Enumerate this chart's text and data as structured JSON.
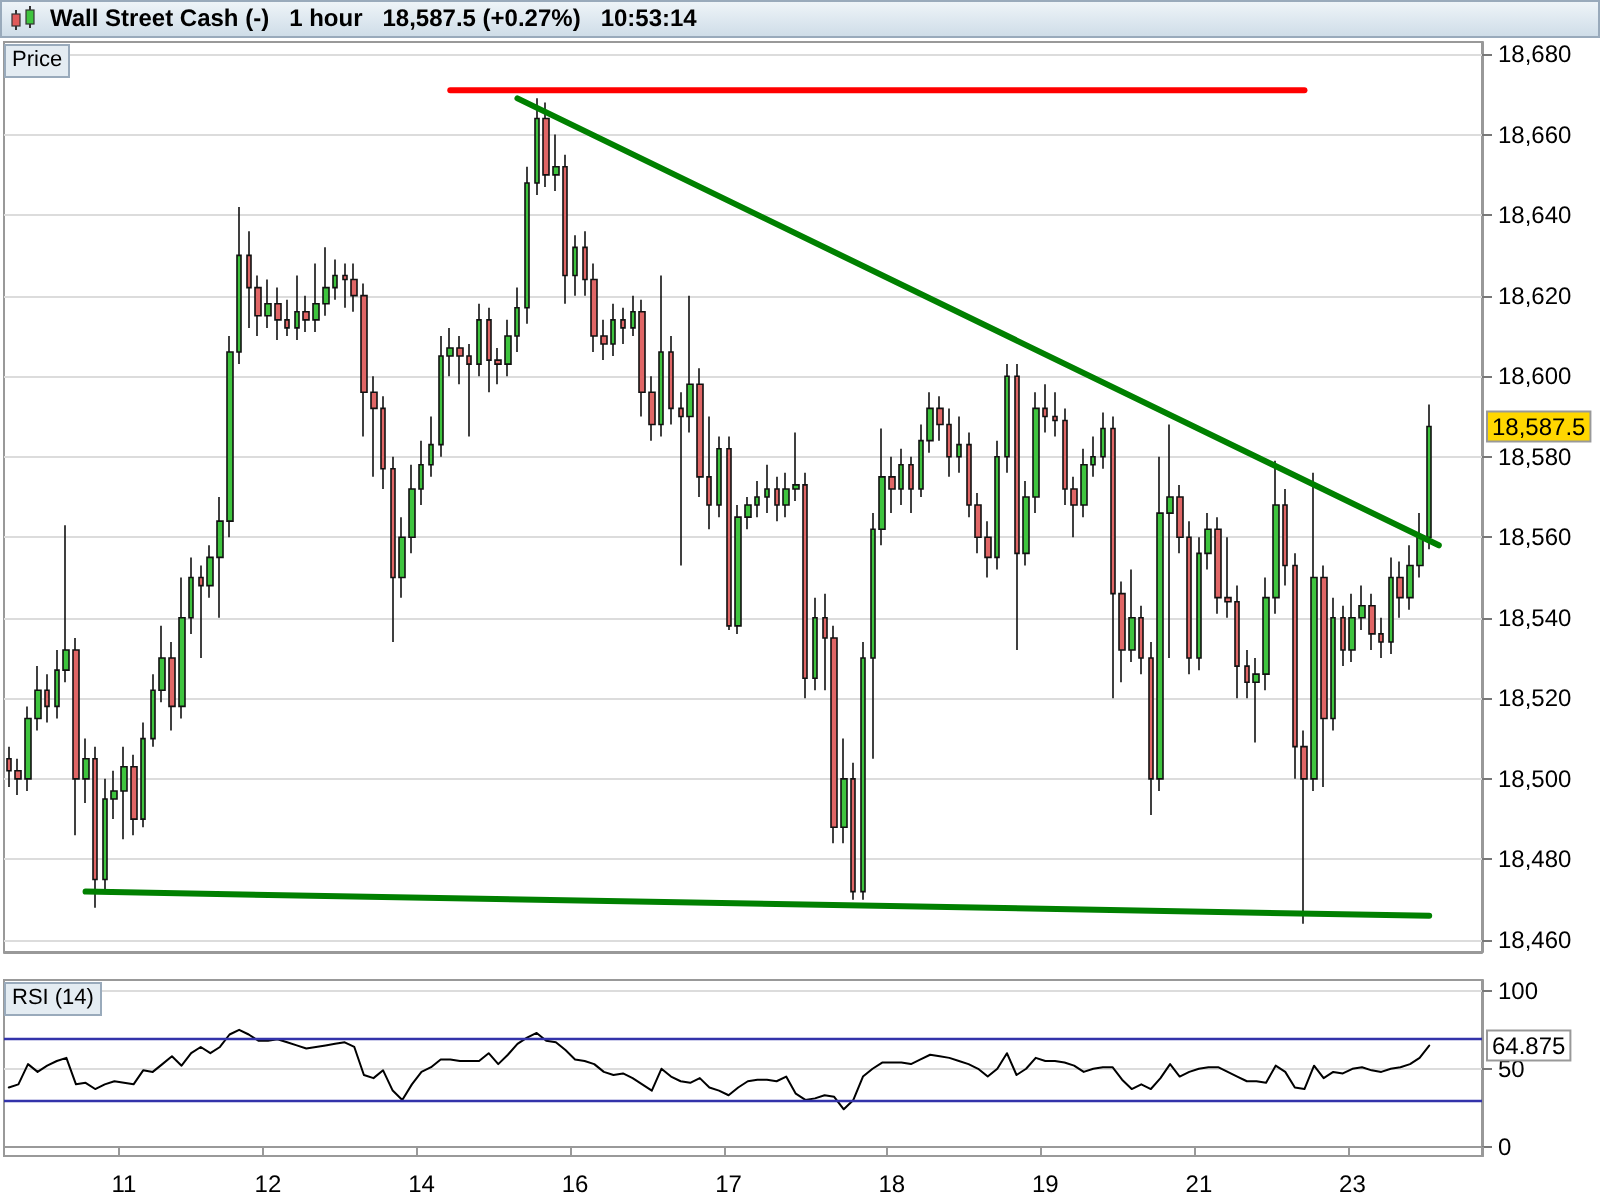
{
  "chart_data": [
    {
      "type": "candlestick",
      "title": "Wall Street Cash (-)   1 hour   18,587.5 (+0.27%)   10:53:14",
      "ylabel": "Price",
      "categories": [
        null,
        null,
        null,
        null,
        null,
        null,
        null,
        null,
        null,
        null,
        null,
        null,
        "11",
        null,
        null,
        null,
        null,
        null,
        null,
        null,
        null,
        null,
        null,
        null,
        null,
        null,
        null,
        "12",
        null,
        null,
        null,
        null,
        null,
        null,
        null,
        null,
        null,
        null,
        null,
        null,
        null,
        null,
        null,
        "14",
        null,
        null,
        null,
        null,
        null,
        null,
        null,
        null,
        null,
        null,
        null,
        null,
        null,
        null,
        null,
        "16",
        null,
        null,
        null,
        null,
        null,
        null,
        null,
        null,
        null,
        null,
        null,
        null,
        null,
        null,
        null,
        "17",
        null,
        null,
        null,
        null,
        null,
        null,
        null,
        null,
        null,
        null,
        null,
        null,
        null,
        null,
        null,
        null,
        "18",
        null,
        null,
        null,
        null,
        null,
        null,
        null,
        null,
        null,
        null,
        null,
        null,
        null,
        null,
        null,
        "19",
        null,
        null,
        null,
        null,
        null,
        null,
        null,
        null,
        null,
        null,
        null,
        null,
        null,
        null,
        null,
        "21",
        null,
        null,
        null,
        null,
        null,
        null,
        null,
        null,
        null,
        null,
        null,
        null,
        null,
        null,
        null,
        "23",
        null,
        null,
        null,
        null,
        null,
        null,
        null,
        null,
        null,
        null,
        null,
        null,
        null
      ],
      "ohlc": [
        [
          18505,
          18508,
          18498,
          18502
        ],
        [
          18502,
          18505,
          18496,
          18500
        ],
        [
          18500,
          18518,
          18497,
          18515
        ],
        [
          18515,
          18528,
          18512,
          18522
        ],
        [
          18522,
          18526,
          18514,
          18518
        ],
        [
          18518,
          18532,
          18515,
          18527
        ],
        [
          18527,
          18563,
          18524,
          18532
        ],
        [
          18532,
          18535,
          18486,
          18500
        ],
        [
          18500,
          18510,
          18494,
          18505
        ],
        [
          18505,
          18508,
          18468,
          18475
        ],
        [
          18475,
          18500,
          18472,
          18495
        ],
        [
          18495,
          18502,
          18490,
          18497
        ],
        [
          18497,
          18508,
          18485,
          18503
        ],
        [
          18503,
          18506,
          18486,
          18490
        ],
        [
          18490,
          18514,
          18488,
          18510
        ],
        [
          18510,
          18526,
          18508,
          18522
        ],
        [
          18522,
          18538,
          18519,
          18530
        ],
        [
          18530,
          18534,
          18512,
          18518
        ],
        [
          18518,
          18550,
          18515,
          18540
        ],
        [
          18540,
          18555,
          18536,
          18550
        ],
        [
          18550,
          18553,
          18530,
          18548
        ],
        [
          18548,
          18558,
          18545,
          18555
        ],
        [
          18555,
          18570,
          18540,
          18564
        ],
        [
          18564,
          18610,
          18560,
          18606
        ],
        [
          18606,
          18642,
          18603,
          18630
        ],
        [
          18630,
          18636,
          18612,
          18622
        ],
        [
          18622,
          18625,
          18610,
          18615
        ],
        [
          18615,
          18624,
          18612,
          18618
        ],
        [
          18618,
          18622,
          18609,
          18614
        ],
        [
          18614,
          18619,
          18610,
          18612
        ],
        [
          18612,
          18625,
          18609,
          18616
        ],
        [
          18616,
          18620,
          18611,
          18614
        ],
        [
          18614,
          18628,
          18611,
          18618
        ],
        [
          18618,
          18632,
          18615,
          18622
        ],
        [
          18622,
          18629,
          18619,
          18625
        ],
        [
          18625,
          18628,
          18617,
          18624
        ],
        [
          18624,
          18628,
          18616,
          18620
        ],
        [
          18620,
          18623,
          18585,
          18596
        ],
        [
          18596,
          18600,
          18575,
          18592
        ],
        [
          18592,
          18595,
          18572,
          18577
        ],
        [
          18577,
          18580,
          18534,
          18550
        ],
        [
          18550,
          18565,
          18545,
          18560
        ],
        [
          18560,
          18578,
          18556,
          18572
        ],
        [
          18572,
          18584,
          18568,
          18578
        ],
        [
          18578,
          18590,
          18575,
          18583
        ],
        [
          18583,
          18610,
          18580,
          18605
        ],
        [
          18605,
          18612,
          18600,
          18607
        ],
        [
          18607,
          18610,
          18598,
          18605
        ],
        [
          18605,
          18608,
          18585,
          18603
        ],
        [
          18603,
          18618,
          18600,
          18614
        ],
        [
          18614,
          18617,
          18596,
          18604
        ],
        [
          18604,
          18607,
          18598,
          18603
        ],
        [
          18603,
          18614,
          18600,
          18610
        ],
        [
          18610,
          18622,
          18606,
          18617
        ],
        [
          18617,
          18652,
          18613,
          18648
        ],
        [
          18648,
          18669,
          18645,
          18664
        ],
        [
          18664,
          18668,
          18647,
          18650
        ],
        [
          18650,
          18660,
          18646,
          18652
        ],
        [
          18652,
          18655,
          18618,
          18625
        ],
        [
          18625,
          18635,
          18620,
          18632
        ],
        [
          18632,
          18636,
          18620,
          18624
        ],
        [
          18624,
          18628,
          18606,
          18610
        ],
        [
          18610,
          18614,
          18604,
          18608
        ],
        [
          18608,
          18618,
          18605,
          18614
        ],
        [
          18614,
          18617,
          18608,
          18612
        ],
        [
          18612,
          18620,
          18610,
          18616
        ],
        [
          18616,
          18619,
          18590,
          18596
        ],
        [
          18596,
          18600,
          18584,
          18588
        ],
        [
          18588,
          18625,
          18585,
          18606
        ],
        [
          18606,
          18610,
          18588,
          18592
        ],
        [
          18592,
          18596,
          18553,
          18590
        ],
        [
          18590,
          18620,
          18586,
          18598
        ],
        [
          18598,
          18602,
          18570,
          18575
        ],
        [
          18575,
          18590,
          18562,
          18568
        ],
        [
          18568,
          18585,
          18565,
          18582
        ],
        [
          18582,
          18585,
          18537,
          18538
        ],
        [
          18538,
          18568,
          18536,
          18565
        ],
        [
          18565,
          18570,
          18562,
          18568
        ],
        [
          18568,
          18574,
          18565,
          18570
        ],
        [
          18570,
          18578,
          18566,
          18572
        ],
        [
          18572,
          18575,
          18564,
          18568
        ],
        [
          18568,
          18576,
          18565,
          18572
        ],
        [
          18572,
          18586,
          18569,
          18573
        ],
        [
          18573,
          18576,
          18520,
          18525
        ],
        [
          18525,
          18545,
          18522,
          18540
        ],
        [
          18540,
          18546,
          18522,
          18535
        ],
        [
          18535,
          18538,
          18484,
          18488
        ],
        [
          18488,
          18510,
          18484,
          18500
        ],
        [
          18500,
          18504,
          18470,
          18472
        ],
        [
          18472,
          18534,
          18470,
          18530
        ],
        [
          18530,
          18566,
          18505,
          18562
        ],
        [
          18562,
          18587,
          18558,
          18575
        ],
        [
          18575,
          18580,
          18566,
          18572
        ],
        [
          18572,
          18582,
          18568,
          18578
        ],
        [
          18578,
          18580,
          18566,
          18572
        ],
        [
          18572,
          18588,
          18570,
          18584
        ],
        [
          18584,
          18596,
          18581,
          18592
        ],
        [
          18592,
          18595,
          18584,
          18588
        ],
        [
          18588,
          18592,
          18575,
          18580
        ],
        [
          18580,
          18590,
          18576,
          18583
        ],
        [
          18583,
          18586,
          18565,
          18568
        ],
        [
          18568,
          18571,
          18556,
          18560
        ],
        [
          18560,
          18564,
          18550,
          18555
        ],
        [
          18555,
          18584,
          18552,
          18580
        ],
        [
          18580,
          18603,
          18576,
          18600
        ],
        [
          18600,
          18603,
          18532,
          18556
        ],
        [
          18556,
          18574,
          18553,
          18570
        ],
        [
          18570,
          18596,
          18566,
          18592
        ],
        [
          18592,
          18598,
          18586,
          18590
        ],
        [
          18590,
          18596,
          18585,
          18589
        ],
        [
          18589,
          18592,
          18568,
          18572
        ],
        [
          18572,
          18575,
          18560,
          18568
        ],
        [
          18568,
          18582,
          18565,
          18578
        ],
        [
          18578,
          18585,
          18575,
          18580
        ],
        [
          18580,
          18591,
          18577,
          18587
        ],
        [
          18587,
          18590,
          18520,
          18546
        ],
        [
          18546,
          18549,
          18524,
          18532
        ],
        [
          18532,
          18552,
          18529,
          18540
        ],
        [
          18540,
          18543,
          18526,
          18530
        ],
        [
          18530,
          18534,
          18491,
          18500
        ],
        [
          18500,
          18580,
          18497,
          18566
        ],
        [
          18566,
          18588,
          18530,
          18570
        ],
        [
          18570,
          18573,
          18556,
          18560
        ],
        [
          18560,
          18564,
          18526,
          18530
        ],
        [
          18530,
          18560,
          18527,
          18556
        ],
        [
          18556,
          18566,
          18552,
          18562
        ],
        [
          18562,
          18565,
          18541,
          18545
        ],
        [
          18545,
          18560,
          18540,
          18544
        ],
        [
          18544,
          18548,
          18520,
          18528
        ],
        [
          18528,
          18532,
          18520,
          18524
        ],
        [
          18524,
          18530,
          18509,
          18526
        ],
        [
          18526,
          18550,
          18522,
          18545
        ],
        [
          18545,
          18579,
          18541,
          18568
        ],
        [
          18568,
          18572,
          18548,
          18553
        ],
        [
          18553,
          18556,
          18500,
          18508
        ],
        [
          18508,
          18512,
          18464,
          18500
        ],
        [
          18500,
          18576,
          18497,
          18550
        ],
        [
          18550,
          18553,
          18498,
          18515
        ],
        [
          18515,
          18545,
          18512,
          18540
        ],
        [
          18540,
          18543,
          18528,
          18532
        ],
        [
          18532,
          18546,
          18529,
          18540
        ],
        [
          18540,
          18548,
          18537,
          18543
        ],
        [
          18543,
          18546,
          18532,
          18536
        ],
        [
          18536,
          18540,
          18530,
          18534
        ],
        [
          18534,
          18555,
          18531,
          18550
        ],
        [
          18550,
          18554,
          18540,
          18545
        ],
        [
          18545,
          18558,
          18542,
          18553
        ],
        [
          18553,
          18566,
          18550,
          18560
        ],
        [
          18560,
          18593,
          18557,
          18587.5
        ],
        null,
        null,
        null,
        null,
        null
      ],
      "series": [
        {
          "type": "line",
          "color": "#008000",
          "marker": "none",
          "values": [
            null,
            null,
            null,
            null,
            null,
            null,
            null,
            null,
            null,
            null,
            null,
            null,
            null,
            null,
            null,
            null,
            null,
            null,
            null,
            null,
            null,
            null,
            null,
            null,
            null,
            null,
            null,
            null,
            null,
            null,
            null,
            null,
            null,
            null,
            null,
            null,
            null,
            null,
            null,
            null,
            null,
            null,
            null,
            null,
            null,
            null,
            null,
            null,
            null,
            null,
            null,
            null,
            null,
            18669,
            null,
            null,
            null,
            null,
            null,
            null,
            null,
            null,
            null,
            null,
            null,
            null,
            null,
            null,
            null,
            null,
            null,
            null,
            null,
            null,
            null,
            null,
            null,
            null,
            null,
            null,
            null,
            null,
            null,
            null,
            null,
            null,
            null,
            null,
            null,
            null,
            null,
            null,
            null,
            null,
            null,
            null,
            null,
            null,
            null,
            null,
            null,
            null,
            null,
            null,
            null,
            null,
            null,
            null,
            null,
            null,
            null,
            null,
            null,
            null,
            null,
            null,
            null,
            null,
            null,
            null,
            null,
            null,
            null,
            null,
            null,
            null,
            null,
            null,
            null,
            null,
            null,
            null,
            null,
            null,
            null,
            null,
            null,
            null,
            null,
            null,
            null,
            null,
            null,
            null,
            null,
            null,
            null,
            null,
            null,
            18558,
            null,
            null,
            null,
            null
          ]
        },
        {
          "type": "line",
          "color": "#008000",
          "marker": "none",
          "values": [
            null,
            null,
            null,
            null,
            null,
            null,
            null,
            null,
            18472,
            null,
            null,
            null,
            null,
            null,
            null,
            null,
            null,
            null,
            null,
            null,
            null,
            null,
            null,
            null,
            null,
            null,
            null,
            null,
            null,
            null,
            null,
            null,
            null,
            null,
            null,
            null,
            null,
            null,
            null,
            null,
            null,
            null,
            null,
            null,
            null,
            null,
            null,
            null,
            null,
            null,
            null,
            null,
            null,
            null,
            null,
            null,
            null,
            null,
            null,
            null,
            null,
            null,
            null,
            null,
            null,
            null,
            null,
            null,
            null,
            null,
            null,
            null,
            null,
            null,
            null,
            null,
            null,
            null,
            null,
            null,
            null,
            null,
            null,
            null,
            null,
            null,
            null,
            null,
            null,
            null,
            null,
            null,
            null,
            null,
            null,
            null,
            null,
            null,
            null,
            null,
            null,
            null,
            null,
            null,
            null,
            null,
            null,
            null,
            null,
            null,
            null,
            null,
            null,
            null,
            null,
            null,
            null,
            null,
            null,
            null,
            null,
            null,
            null,
            null,
            null,
            null,
            null,
            null,
            null,
            null,
            null,
            null,
            null,
            null,
            null,
            null,
            null,
            null,
            null,
            null,
            null,
            null,
            null,
            null,
            null,
            null,
            null,
            null,
            18466,
            null,
            null,
            null,
            null,
            null
          ]
        },
        {
          "type": "line",
          "color": "#ff0000",
          "marker": "none",
          "values": [
            null,
            null,
            null,
            null,
            null,
            null,
            null,
            null,
            null,
            null,
            null,
            null,
            null,
            null,
            null,
            null,
            null,
            null,
            null,
            null,
            null,
            null,
            null,
            null,
            null,
            null,
            null,
            null,
            null,
            null,
            null,
            null,
            null,
            null,
            null,
            null,
            null,
            null,
            null,
            null,
            null,
            null,
            null,
            null,
            null,
            null,
            18671,
            null,
            null,
            null,
            null,
            null,
            null,
            null,
            null,
            null,
            null,
            null,
            null,
            null,
            null,
            null,
            null,
            null,
            null,
            null,
            null,
            null,
            null,
            null,
            null,
            null,
            null,
            null,
            null,
            null,
            null,
            null,
            null,
            null,
            null,
            null,
            null,
            null,
            null,
            null,
            null,
            null,
            null,
            null,
            null,
            null,
            null,
            null,
            null,
            null,
            null,
            null,
            null,
            null,
            null,
            null,
            null,
            null,
            null,
            null,
            null,
            null,
            null,
            null,
            null,
            null,
            null,
            null,
            null,
            null,
            null,
            null,
            null,
            null,
            null,
            null,
            null,
            null,
            null,
            null,
            null,
            null,
            null,
            null,
            null,
            null,
            null,
            null,
            null,
            18671,
            null,
            null,
            null,
            null,
            null,
            null,
            null,
            null,
            null,
            null,
            null,
            null,
            null,
            null,
            null,
            null,
            null,
            null
          ]
        }
      ],
      "ylim": [
        18457,
        18683
      ],
      "yticks": [
        {
          "value": 18460,
          "label": "18,460"
        },
        {
          "value": 18480,
          "label": "18,480"
        },
        {
          "value": 18500,
          "label": "18,500"
        },
        {
          "value": 18520,
          "label": "18,520"
        },
        {
          "value": 18540,
          "label": "18,540"
        },
        {
          "value": 18560,
          "label": "18,560"
        },
        {
          "value": 18580,
          "label": "18,580"
        },
        {
          "value": 18600,
          "label": "18,600"
        },
        {
          "value": 18620,
          "label": "18,620"
        },
        {
          "value": 18640,
          "label": "18,640"
        },
        {
          "value": 18660,
          "label": "18,660"
        },
        {
          "value": 18680,
          "label": "18,680"
        }
      ],
      "annotations": [
        "18,587.5"
      ],
      "grid": "y",
      "tick_labels": "y"
    },
    {
      "type": "line",
      "ylabel": "RSI (14)",
      "categories": [
        null,
        null,
        null,
        null,
        null,
        null,
        null,
        null,
        null,
        null,
        null,
        null,
        "11",
        null,
        null,
        null,
        null,
        null,
        null,
        null,
        null,
        null,
        null,
        null,
        null,
        null,
        null,
        "12",
        null,
        null,
        null,
        null,
        null,
        null,
        null,
        null,
        null,
        null,
        null,
        null,
        null,
        null,
        null,
        "14",
        null,
        null,
        null,
        null,
        null,
        null,
        null,
        null,
        null,
        null,
        null,
        null,
        null,
        null,
        null,
        "16",
        null,
        null,
        null,
        null,
        null,
        null,
        null,
        null,
        null,
        null,
        null,
        null,
        null,
        null,
        null,
        "17",
        null,
        null,
        null,
        null,
        null,
        null,
        null,
        null,
        null,
        null,
        null,
        null,
        null,
        null,
        null,
        null,
        "18",
        null,
        null,
        null,
        null,
        null,
        null,
        null,
        null,
        null,
        null,
        null,
        null,
        null,
        null,
        null,
        "19",
        null,
        null,
        null,
        null,
        null,
        null,
        null,
        null,
        null,
        null,
        null,
        null,
        null,
        null,
        null,
        "21",
        null,
        null,
        null,
        null,
        null,
        null,
        null,
        null,
        null,
        null,
        null,
        null,
        null,
        null,
        null,
        "23",
        null,
        null,
        null,
        null,
        null,
        null,
        null,
        null,
        null,
        null,
        null,
        null,
        null
      ],
      "series": [
        {
          "color": "#000000",
          "marker": "none",
          "values": [
            38,
            40,
            53,
            48,
            52,
            55,
            57,
            40,
            41,
            37,
            40,
            42,
            41,
            40,
            49,
            48,
            53,
            58,
            52,
            60,
            64,
            60,
            64,
            72,
            75,
            72,
            68,
            68,
            69,
            67,
            65,
            63,
            64,
            65,
            66,
            67,
            64,
            46,
            44,
            49,
            36,
            30,
            40,
            48,
            51,
            56,
            56,
            55,
            55,
            55,
            60,
            53,
            59,
            66,
            70,
            73,
            68,
            67,
            62,
            56,
            55,
            53,
            48,
            46,
            47,
            44,
            40,
            36,
            50,
            45,
            42,
            41,
            44,
            38,
            36,
            33,
            38,
            42,
            43,
            43,
            42,
            45,
            34,
            30,
            31,
            33,
            32,
            24,
            30,
            45,
            50,
            54,
            54,
            54,
            53,
            56,
            59,
            58,
            57,
            55,
            53,
            50,
            45,
            50,
            60,
            46,
            50,
            57,
            55,
            55,
            54,
            52,
            48,
            50,
            51,
            51,
            43,
            37,
            40,
            37,
            44,
            53,
            45,
            48,
            50,
            51,
            51,
            48,
            45,
            42,
            42,
            41,
            52,
            48,
            38,
            37,
            52,
            44,
            48,
            47,
            50,
            51,
            49,
            48,
            50,
            51,
            53,
            57,
            64.875,
            null,
            null,
            null,
            null,
            null
          ]
        }
      ],
      "ylim": [
        -6,
        107
      ],
      "yticks": [
        0,
        50,
        100
      ],
      "ref_lines": [
        {
          "axis": "y",
          "value": 70,
          "label": null,
          "color": "#3333aa"
        },
        {
          "axis": "y",
          "value": 30,
          "label": null,
          "color": "#3333aa"
        }
      ],
      "annotations": [
        "64.875"
      ],
      "grid": "y"
    }
  ]
}
